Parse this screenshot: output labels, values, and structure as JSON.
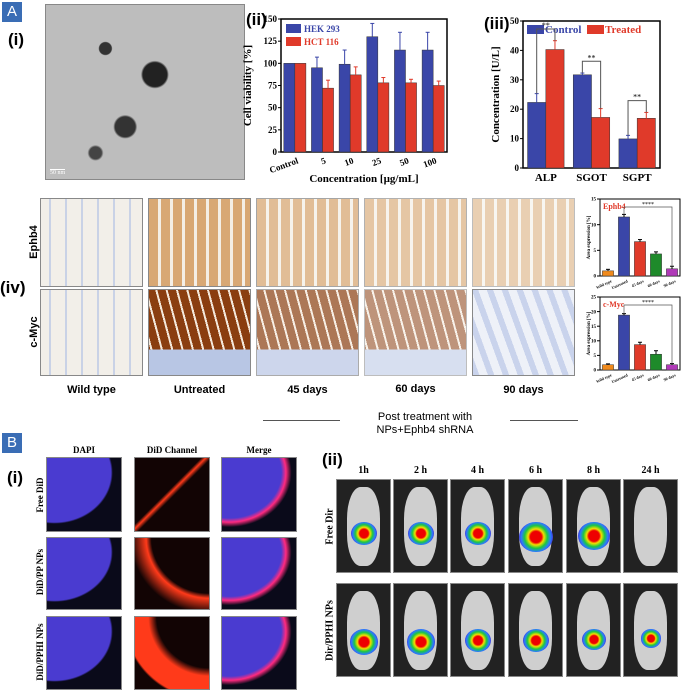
{
  "panels": {
    "A": "A",
    "B": "B",
    "i": "(i)",
    "ii": "(ii)",
    "iii": "(iii)",
    "iv": "(iv)",
    "Bi": "(i)",
    "Bii": "(ii)"
  },
  "tem": {
    "scale_bar": "50 nm"
  },
  "ihc": {
    "rows": [
      "Ephb4",
      "c-Myc"
    ],
    "columns": [
      "Wild type",
      "Untreated",
      "45 days",
      "60 days",
      "90 days"
    ],
    "post_treatment": "Post treatment with",
    "post_treatment2": "NPs+Ephb4 shRNA"
  },
  "fluor": {
    "columns": [
      "DAPI",
      "DiD Channel",
      "Merge"
    ],
    "rows": [
      "Free DiD",
      "DiD/PP NPs",
      "DiD/PPHI NPs"
    ]
  },
  "ivis": {
    "times": [
      "1h",
      "2 h",
      "4 h",
      "6 h",
      "8 h",
      "24 h"
    ],
    "rows": [
      "Free Dir",
      "Dir/PPHI NPs"
    ]
  },
  "chart_data": [
    {
      "id": "viability",
      "type": "bar",
      "categories": [
        "Control",
        "5",
        "10",
        "25",
        "50",
        "100"
      ],
      "series": [
        {
          "name": "HEK 293",
          "color": "#3a46a8",
          "values": [
            100,
            95,
            99,
            130,
            115,
            115
          ],
          "errors": [
            0,
            12,
            16,
            15,
            20,
            20
          ]
        },
        {
          "name": "HCT 116",
          "color": "#e03a2a",
          "values": [
            100,
            72,
            87,
            78,
            78,
            75
          ],
          "errors": [
            0,
            9,
            9,
            6,
            4,
            5
          ]
        }
      ],
      "xlabel": "Concentration [µg/mL]",
      "ylabel": "Cell viability [%]",
      "ylim": [
        0,
        150
      ],
      "yticks": [
        0,
        25,
        50,
        75,
        100,
        125,
        150
      ],
      "legend": "top-left"
    },
    {
      "id": "liver",
      "type": "bar",
      "categories": [
        "ALP",
        "SGOT",
        "SGPT"
      ],
      "series": [
        {
          "name": "Control",
          "color": "#3a46a8",
          "values": [
            22.3,
            31.7,
            9.9
          ],
          "errors": [
            3,
            0.6,
            1.2
          ]
        },
        {
          "name": "Treated",
          "color": "#e03a2a",
          "values": [
            40.3,
            17.2,
            16.9
          ],
          "errors": [
            3,
            3,
            2
          ]
        }
      ],
      "significance": [
        "**",
        "**",
        "**"
      ],
      "xlabel": "",
      "ylabel": "Concentration [U/L]",
      "ylim": [
        0,
        50
      ],
      "yticks": [
        0,
        10,
        20,
        30,
        40,
        50
      ],
      "legend": "top"
    },
    {
      "id": "ephb4",
      "type": "bar",
      "title": "Ephb4",
      "categories": [
        "Wild type",
        "Untreated",
        "45 days",
        "60 days",
        "90 days"
      ],
      "colors": [
        "#f08a1c",
        "#3a46a8",
        "#e03a2a",
        "#1e8a2a",
        "#b03ab8"
      ],
      "values": [
        1.0,
        11.5,
        6.7,
        4.3,
        1.4
      ],
      "errors": [
        0.3,
        0.5,
        0.4,
        0.4,
        0.5
      ],
      "significance": "****",
      "ylabel": "Area expression [%]",
      "ylim": [
        0,
        15
      ],
      "yticks": [
        0,
        5,
        10,
        15
      ]
    },
    {
      "id": "cmyc",
      "type": "bar",
      "title": "c-Myc",
      "categories": [
        "Wild type",
        "Untreated",
        "45 days",
        "60 days",
        "90 days"
      ],
      "colors": [
        "#f08a1c",
        "#3a46a8",
        "#e03a2a",
        "#1e8a2a",
        "#b03ab8"
      ],
      "values": [
        1.8,
        18.8,
        8.7,
        5.4,
        1.8
      ],
      "errors": [
        0.3,
        0.5,
        0.8,
        1.2,
        0.4
      ],
      "significance": "****",
      "ylabel": "Area expression [%]",
      "ylim": [
        0,
        25
      ],
      "yticks": [
        0,
        5,
        10,
        15,
        20,
        25
      ]
    }
  ]
}
